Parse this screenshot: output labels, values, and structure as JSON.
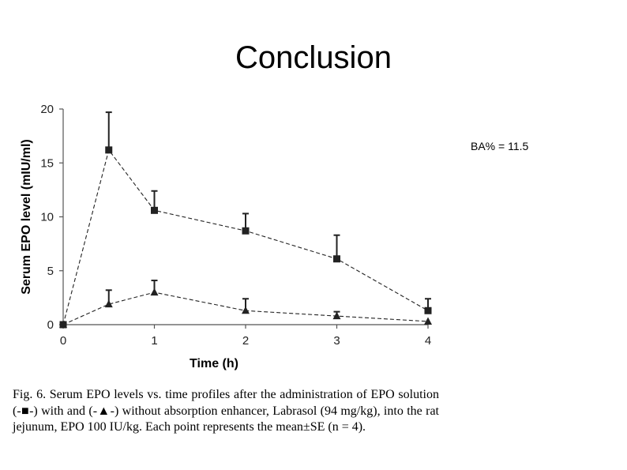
{
  "slide": {
    "title": "Conclusion",
    "ba_note": "BA% = 11.5"
  },
  "figure": {
    "caption": "Fig. 6.  Serum EPO levels vs. time profiles after the administration of EPO solution (-■-) with and (-▲-) without absorption enhancer, Labrasol (94 mg/kg), into the rat jejunum, EPO 100 IU/kg. Each point represents the mean±SE (n = 4)."
  },
  "chart_data": {
    "type": "line",
    "title": "",
    "xlabel": "Time (h)",
    "ylabel": "Serum EPO level (mIU/ml)",
    "xlim": [
      0,
      4
    ],
    "ylim": [
      0,
      20
    ],
    "xticks": [
      0,
      1,
      2,
      3,
      4
    ],
    "yticks": [
      0,
      5,
      10,
      15,
      20
    ],
    "grid": false,
    "series": [
      {
        "marker": "square",
        "line_style": "dashed",
        "color": "#222222",
        "x": [
          0,
          0.5,
          1,
          2,
          3,
          4
        ],
        "y": [
          0,
          16.2,
          10.6,
          8.7,
          6.1,
          1.3
        ],
        "err": [
          0,
          3.5,
          1.8,
          1.6,
          2.2,
          1.1
        ]
      },
      {
        "marker": "triangle",
        "line_style": "dashed",
        "color": "#222222",
        "x": [
          0,
          0.5,
          1,
          2,
          3,
          4
        ],
        "y": [
          0,
          1.9,
          3.0,
          1.3,
          0.8,
          0.3
        ],
        "err": [
          0,
          1.3,
          1.1,
          1.1,
          0.4,
          0
        ]
      }
    ]
  }
}
